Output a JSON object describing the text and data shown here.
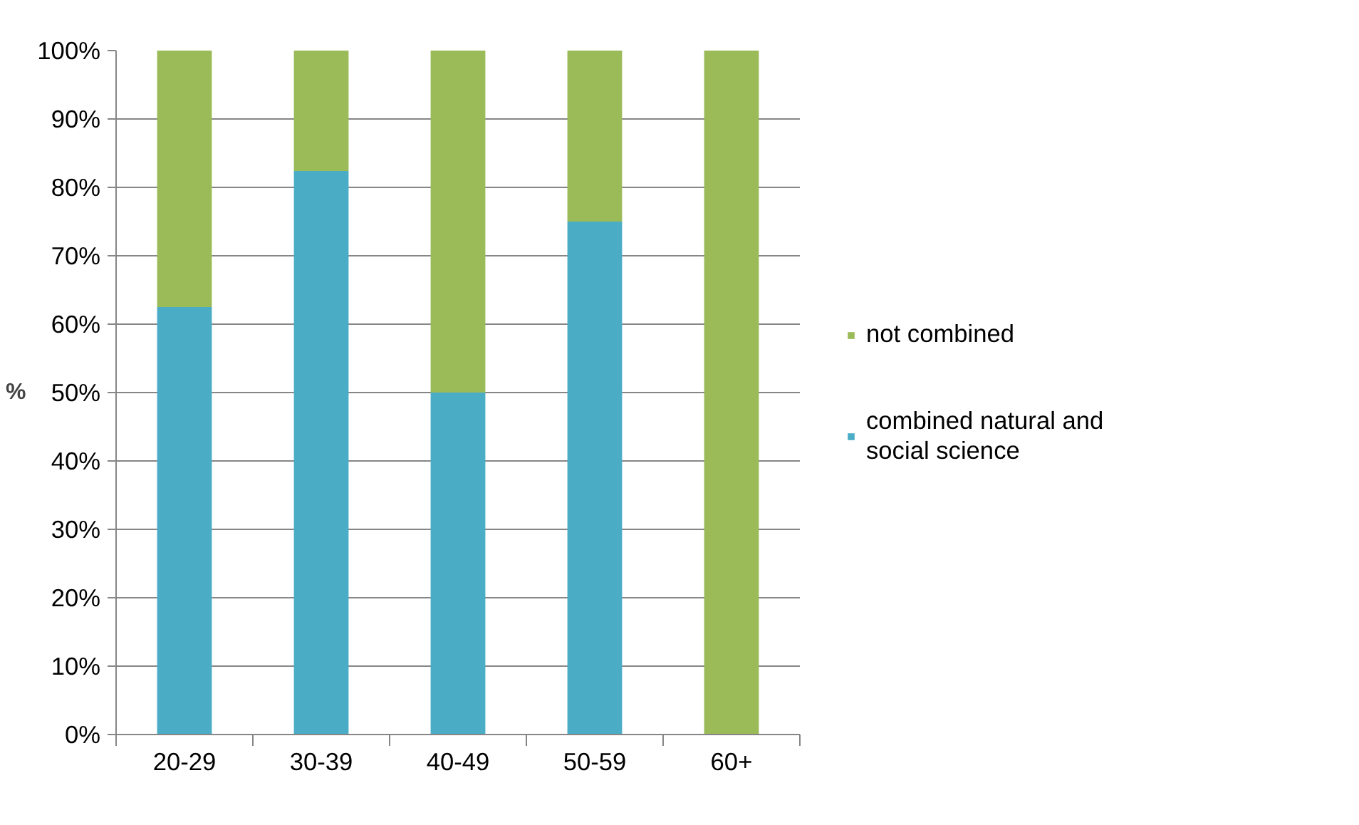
{
  "chart_data": {
    "type": "bar",
    "stacked": true,
    "ylabel": "%",
    "categories": [
      "20-29",
      "30-39",
      "40-49",
      "50-59",
      "60+"
    ],
    "series": [
      {
        "name": "combined natural and social science",
        "color": "#4bacc6",
        "values": [
          62.5,
          82.4,
          50,
          75,
          0
        ]
      },
      {
        "name": "not combined",
        "color": "#9bbb59",
        "values": [
          37.5,
          17.6,
          50,
          25,
          100
        ]
      }
    ],
    "ylim": [
      0,
      100
    ],
    "yticks": [
      {
        "value": 0,
        "label": "0%"
      },
      {
        "value": 10,
        "label": "10%"
      },
      {
        "value": 20,
        "label": "20%"
      },
      {
        "value": 30,
        "label": "30%"
      },
      {
        "value": 40,
        "label": "40%"
      },
      {
        "value": 50,
        "label": "50%"
      },
      {
        "value": 60,
        "label": "60%"
      },
      {
        "value": 70,
        "label": "70%"
      },
      {
        "value": 80,
        "label": "80%"
      },
      {
        "value": 90,
        "label": "90%"
      },
      {
        "value": 100,
        "label": "100%"
      }
    ],
    "grid": "y",
    "legend": "right"
  }
}
